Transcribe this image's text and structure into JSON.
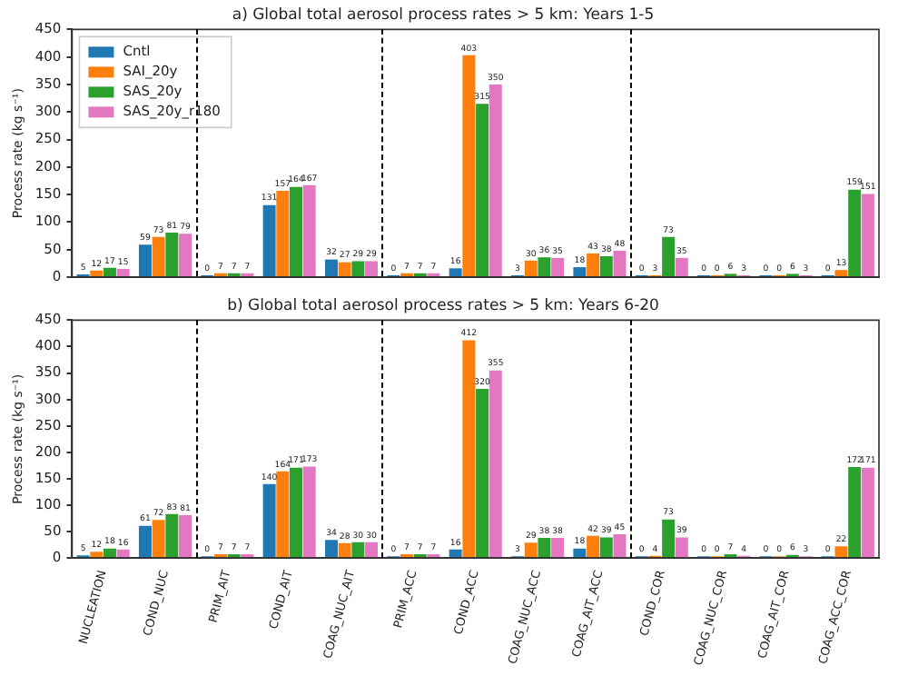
{
  "chart_data": [
    {
      "type": "bar",
      "title": "a) Global total aerosol process rates > 5 km: Years 1-5",
      "ylabel": "Process rate (kg s⁻¹)",
      "categories": [
        null,
        null,
        null,
        null,
        null,
        null,
        null,
        null,
        null,
        null,
        null,
        null,
        null
      ],
      "series": [
        {
          "name": "Cntl",
          "color": "#1f77b4",
          "values": [
            5,
            59,
            0,
            131,
            32,
            0,
            16,
            3,
            18,
            0,
            0,
            0,
            0
          ]
        },
        {
          "name": "SAI_20y",
          "color": "#ff7f0e",
          "values": [
            12,
            73,
            7,
            157,
            27,
            7,
            403,
            30,
            43,
            3,
            0,
            0,
            13
          ]
        },
        {
          "name": "SAS_20y",
          "color": "#2ca02c",
          "values": [
            17,
            81,
            7,
            164,
            29,
            7,
            315,
            36,
            38,
            73,
            6,
            6,
            159
          ]
        },
        {
          "name": "SAS_20y_r180",
          "color": "#e377c2",
          "values": [
            15,
            79,
            7,
            167,
            29,
            7,
            350,
            35,
            48,
            35,
            3,
            3,
            151
          ]
        }
      ],
      "ylim": [
        0,
        450
      ],
      "yticks": [
        0,
        50,
        100,
        150,
        200,
        250,
        300,
        350,
        400,
        450
      ],
      "grid": false,
      "legend": "top left",
      "data_labels": true,
      "tick_labels": "y"
    },
    {
      "type": "bar",
      "title": "b) Global total aerosol process rates > 5 km: Years 6-20",
      "ylabel": "Process rate (kg s⁻¹)",
      "categories": [
        "NUCLEATION",
        "COND_NUC",
        "PRIM_AIT",
        "COND_AIT",
        "COAG_NUC_AIT",
        "PRIM_ACC",
        "COND_ACC",
        "COAG_NUC_ACC",
        "COAG_AIT_ACC",
        "COND_COR",
        "COAG_NUC_COR",
        "COAG_AIT_COR",
        "COAG_ACC_COR"
      ],
      "series": [
        {
          "color": "#1f77b4",
          "values": [
            5,
            61,
            0,
            140,
            34,
            0,
            16,
            3,
            18,
            0,
            0,
            0,
            0
          ]
        },
        {
          "color": "#ff7f0e",
          "values": [
            12,
            72,
            7,
            164,
            28,
            7,
            412,
            29,
            42,
            4,
            0,
            0,
            22
          ]
        },
        {
          "color": "#2ca02c",
          "values": [
            18,
            83,
            7,
            171,
            30,
            7,
            320,
            38,
            39,
            73,
            7,
            6,
            172
          ]
        },
        {
          "color": "#e377c2",
          "values": [
            16,
            81,
            7,
            173,
            30,
            7,
            355,
            38,
            45,
            39,
            4,
            3,
            171
          ]
        }
      ],
      "ylim": [
        0,
        450
      ],
      "yticks": [
        0,
        50,
        100,
        150,
        200,
        250,
        300,
        350,
        400,
        450
      ],
      "grid": false,
      "legend": false,
      "data_labels": true
    }
  ]
}
